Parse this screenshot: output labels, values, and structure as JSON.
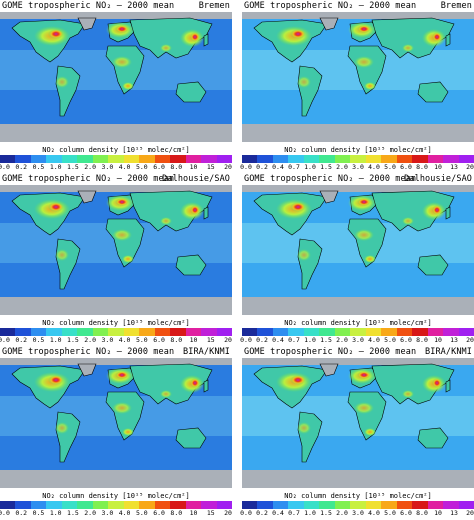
{
  "panels": [
    {
      "title": "GOME tropospheric NO₂ – 2000 mean",
      "source": "Bremen",
      "tick_set": "lin"
    },
    {
      "title": "GOME tropospheric NO₂ – 2000 mean",
      "source": "Bremen",
      "tick_set": "log"
    },
    {
      "title": "GOME tropospheric NO₂ – 2000 mean",
      "source": "Dalhousie/SAO",
      "tick_set": "lin"
    },
    {
      "title": "GOME tropospheric NO₂ – 2000 mean",
      "source": "Dalhousie/SAO",
      "tick_set": "log"
    },
    {
      "title": "GOME tropospheric NO₂ – 2000 mean",
      "source": "BIRA/KNMI",
      "tick_set": "lin"
    },
    {
      "title": "GOME tropospheric NO₂ – 2000 mean",
      "source": "BIRA/KNMI",
      "tick_set": "log"
    }
  ],
  "colorbar": {
    "label": "NO₂ column density  [10¹⁵ molec/cm²]",
    "colors": [
      "#1a2a9a",
      "#1f52d8",
      "#2e8ef0",
      "#38c8f0",
      "#38e0c8",
      "#40e890",
      "#80f050",
      "#c8f040",
      "#f0e030",
      "#f8a818",
      "#f05010",
      "#d81818",
      "#e020a0",
      "#c020d8",
      "#a020f0"
    ],
    "ticks_lin": [
      "0.0",
      "0.2",
      "0.5",
      "1.0",
      "1.5",
      "2.0",
      "3.0",
      "4.0",
      "5.0",
      "6.0",
      "8.0",
      "10",
      "15",
      "20"
    ],
    "ticks_log": [
      "0.0",
      "0.2",
      "0.4",
      "0.7",
      "1.0",
      "1.5",
      "2.0",
      "3.0",
      "4.0",
      "5.0",
      "6.0",
      "8.0",
      "10",
      "13",
      "20"
    ]
  },
  "map_colors": {
    "ocean": "#2a7ce0",
    "ocean_low": "#3aa8f0",
    "ocean_high": "#7cd8f0",
    "land": "#40c8a8",
    "land_mid": "#80e050",
    "hot": "#e8d020",
    "hotter": "#f05020",
    "peak": "#d020c0",
    "ice": "#aab0b8",
    "coast": "#000000"
  }
}
